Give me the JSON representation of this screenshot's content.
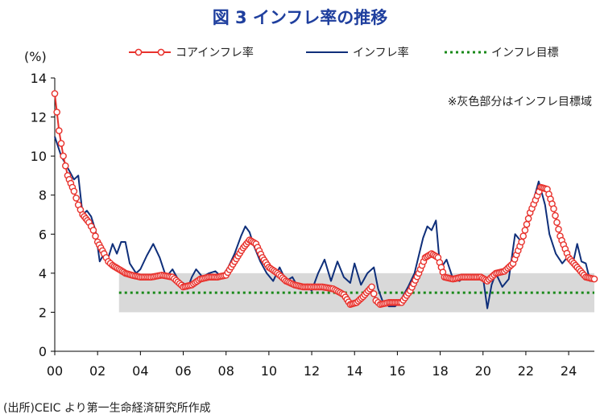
{
  "title": "図 3  インフレ率の推移",
  "source": "(出所)CEIC より第一生命経済研究所作成",
  "chart_data": {
    "type": "line",
    "unit_label": "(%)",
    "annotation": "※灰色部分はインフレ目標域",
    "x_range": [
      2000.0,
      2025.2
    ],
    "ylim": [
      0,
      14
    ],
    "y_ticks": [
      "0",
      "2",
      "4",
      "6",
      "8",
      "10",
      "12",
      "14"
    ],
    "x_ticks": [
      {
        "value": 2000,
        "label": "00"
      },
      {
        "value": 2002,
        "label": "02"
      },
      {
        "value": 2004,
        "label": "04"
      },
      {
        "value": 2006,
        "label": "06"
      },
      {
        "value": 2008,
        "label": "08"
      },
      {
        "value": 2010,
        "label": "10"
      },
      {
        "value": 2012,
        "label": "12"
      },
      {
        "value": 2014,
        "label": "14"
      },
      {
        "value": 2016,
        "label": "16"
      },
      {
        "value": 2018,
        "label": "18"
      },
      {
        "value": 2020,
        "label": "20"
      },
      {
        "value": 2022,
        "label": "22"
      },
      {
        "value": 2024,
        "label": "24"
      }
    ],
    "target_band": {
      "x_start": 2003.0,
      "x_end": 2025.2,
      "y_low": 2,
      "y_high": 4,
      "color": "#d9d9d9"
    },
    "series": [
      {
        "name": "コアインフレ率",
        "color": "#e8322d",
        "marker": "hollow-circle",
        "points": [
          [
            2000.0,
            13.2
          ],
          [
            2000.2,
            11.3
          ],
          [
            2000.4,
            10.0
          ],
          [
            2000.6,
            9.0
          ],
          [
            2000.9,
            8.2
          ],
          [
            2001.1,
            7.5
          ],
          [
            2001.3,
            7.0
          ],
          [
            2001.6,
            6.6
          ],
          [
            2001.8,
            6.2
          ],
          [
            2002.0,
            5.6
          ],
          [
            2002.3,
            5.0
          ],
          [
            2002.5,
            4.6
          ],
          [
            2002.7,
            4.4
          ],
          [
            2003.0,
            4.2
          ],
          [
            2003.3,
            4.0
          ],
          [
            2003.6,
            3.9
          ],
          [
            2004.0,
            3.8
          ],
          [
            2004.5,
            3.8
          ],
          [
            2005.0,
            3.9
          ],
          [
            2005.5,
            3.8
          ],
          [
            2006.0,
            3.3
          ],
          [
            2006.4,
            3.4
          ],
          [
            2006.8,
            3.7
          ],
          [
            2007.2,
            3.8
          ],
          [
            2007.6,
            3.8
          ],
          [
            2008.0,
            3.9
          ],
          [
            2008.4,
            4.6
          ],
          [
            2008.8,
            5.3
          ],
          [
            2009.1,
            5.7
          ],
          [
            2009.4,
            5.5
          ],
          [
            2009.7,
            4.8
          ],
          [
            2010.0,
            4.3
          ],
          [
            2010.4,
            4.0
          ],
          [
            2010.8,
            3.6
          ],
          [
            2011.2,
            3.4
          ],
          [
            2011.6,
            3.3
          ],
          [
            2012.0,
            3.3
          ],
          [
            2012.5,
            3.3
          ],
          [
            2013.0,
            3.2
          ],
          [
            2013.5,
            2.9
          ],
          [
            2013.8,
            2.4
          ],
          [
            2014.1,
            2.5
          ],
          [
            2014.4,
            2.8
          ],
          [
            2014.8,
            3.3
          ],
          [
            2015.0,
            2.6
          ],
          [
            2015.2,
            2.4
          ],
          [
            2015.6,
            2.5
          ],
          [
            2015.9,
            2.5
          ],
          [
            2016.2,
            2.5
          ],
          [
            2016.6,
            3.1
          ],
          [
            2017.0,
            4.0
          ],
          [
            2017.3,
            4.8
          ],
          [
            2017.6,
            5.0
          ],
          [
            2017.9,
            4.8
          ],
          [
            2018.2,
            3.8
          ],
          [
            2018.6,
            3.7
          ],
          [
            2019.0,
            3.8
          ],
          [
            2019.5,
            3.8
          ],
          [
            2019.9,
            3.8
          ],
          [
            2020.2,
            3.6
          ],
          [
            2020.6,
            4.0
          ],
          [
            2021.0,
            4.1
          ],
          [
            2021.4,
            4.5
          ],
          [
            2021.8,
            5.6
          ],
          [
            2022.2,
            7.1
          ],
          [
            2022.7,
            8.4
          ],
          [
            2023.0,
            8.3
          ],
          [
            2023.3,
            7.3
          ],
          [
            2023.6,
            5.9
          ],
          [
            2024.0,
            4.8
          ],
          [
            2024.4,
            4.3
          ],
          [
            2024.8,
            3.8
          ],
          [
            2025.2,
            3.7
          ]
        ]
      },
      {
        "name": "インフレ率",
        "color": "#0f2f7a",
        "marker": "none",
        "points": [
          [
            2000.0,
            11.0
          ],
          [
            2000.3,
            10.0
          ],
          [
            2000.6,
            9.4
          ],
          [
            2000.9,
            8.8
          ],
          [
            2001.1,
            9.0
          ],
          [
            2001.3,
            7.0
          ],
          [
            2001.5,
            7.2
          ],
          [
            2001.7,
            6.9
          ],
          [
            2001.9,
            6.2
          ],
          [
            2002.1,
            4.6
          ],
          [
            2002.3,
            5.0
          ],
          [
            2002.5,
            4.8
          ],
          [
            2002.7,
            5.5
          ],
          [
            2002.9,
            5.0
          ],
          [
            2003.1,
            5.6
          ],
          [
            2003.3,
            5.6
          ],
          [
            2003.5,
            4.5
          ],
          [
            2003.8,
            4.0
          ],
          [
            2004.0,
            4.2
          ],
          [
            2004.3,
            4.9
          ],
          [
            2004.6,
            5.5
          ],
          [
            2004.9,
            4.8
          ],
          [
            2005.2,
            3.8
          ],
          [
            2005.5,
            4.2
          ],
          [
            2005.8,
            3.6
          ],
          [
            2006.0,
            3.5
          ],
          [
            2006.2,
            3.2
          ],
          [
            2006.4,
            3.8
          ],
          [
            2006.6,
            4.2
          ],
          [
            2006.9,
            3.8
          ],
          [
            2007.2,
            4.0
          ],
          [
            2007.5,
            4.1
          ],
          [
            2007.8,
            3.8
          ],
          [
            2008.1,
            4.3
          ],
          [
            2008.4,
            5.0
          ],
          [
            2008.7,
            5.9
          ],
          [
            2008.9,
            6.4
          ],
          [
            2009.1,
            6.1
          ],
          [
            2009.3,
            5.4
          ],
          [
            2009.6,
            4.6
          ],
          [
            2009.9,
            4.0
          ],
          [
            2010.2,
            3.6
          ],
          [
            2010.5,
            4.3
          ],
          [
            2010.8,
            3.6
          ],
          [
            2011.1,
            3.8
          ],
          [
            2011.4,
            3.2
          ],
          [
            2011.7,
            3.4
          ],
          [
            2012.0,
            3.1
          ],
          [
            2012.3,
            4.0
          ],
          [
            2012.6,
            4.7
          ],
          [
            2012.9,
            3.6
          ],
          [
            2013.2,
            4.6
          ],
          [
            2013.5,
            3.8
          ],
          [
            2013.8,
            3.5
          ],
          [
            2014.0,
            4.5
          ],
          [
            2014.3,
            3.4
          ],
          [
            2014.6,
            4.0
          ],
          [
            2014.9,
            4.3
          ],
          [
            2015.1,
            3.2
          ],
          [
            2015.3,
            2.6
          ],
          [
            2015.6,
            2.3
          ],
          [
            2015.9,
            2.3
          ],
          [
            2016.2,
            2.7
          ],
          [
            2016.5,
            3.3
          ],
          [
            2016.8,
            4.0
          ],
          [
            2017.0,
            4.9
          ],
          [
            2017.2,
            5.8
          ],
          [
            2017.4,
            6.4
          ],
          [
            2017.6,
            6.2
          ],
          [
            2017.8,
            6.7
          ],
          [
            2018.0,
            4.2
          ],
          [
            2018.3,
            4.7
          ],
          [
            2018.6,
            3.7
          ],
          [
            2018.9,
            3.6
          ],
          [
            2019.2,
            3.9
          ],
          [
            2019.5,
            3.7
          ],
          [
            2019.8,
            3.8
          ],
          [
            2020.0,
            3.8
          ],
          [
            2020.2,
            2.2
          ],
          [
            2020.4,
            3.4
          ],
          [
            2020.6,
            4.0
          ],
          [
            2020.9,
            3.3
          ],
          [
            2021.2,
            3.7
          ],
          [
            2021.5,
            6.0
          ],
          [
            2021.8,
            5.6
          ],
          [
            2022.0,
            6.2
          ],
          [
            2022.3,
            7.5
          ],
          [
            2022.6,
            8.7
          ],
          [
            2022.9,
            7.5
          ],
          [
            2023.1,
            6.0
          ],
          [
            2023.4,
            5.0
          ],
          [
            2023.7,
            4.5
          ],
          [
            2024.0,
            4.9
          ],
          [
            2024.2,
            4.5
          ],
          [
            2024.4,
            5.5
          ],
          [
            2024.6,
            4.6
          ],
          [
            2024.8,
            4.5
          ],
          [
            2025.0,
            3.6
          ],
          [
            2025.2,
            3.7
          ]
        ]
      },
      {
        "name": "インフレ目標",
        "color": "#1a8a1a",
        "marker": "dotted-line",
        "points": [
          [
            2003.0,
            3.0
          ],
          [
            2025.2,
            3.0
          ]
        ]
      }
    ]
  }
}
